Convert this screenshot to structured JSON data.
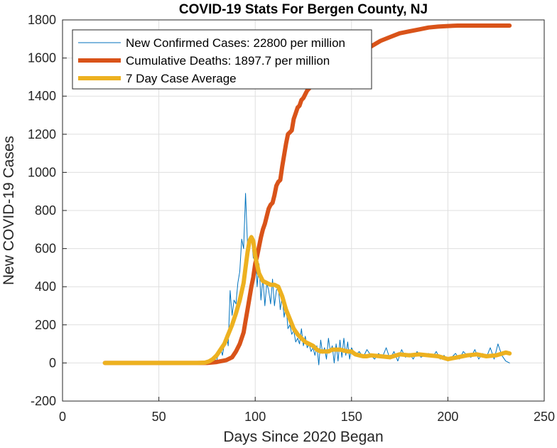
{
  "chart_data": {
    "type": "line",
    "title": "COVID-19 Stats For Bergen County, NJ",
    "xlabel": "Days Since 2020 Began",
    "ylabel": "New COVID-19 Cases",
    "xlim": [
      0,
      250
    ],
    "ylim": [
      -200,
      1800
    ],
    "xticks": [
      0,
      50,
      100,
      150,
      200,
      250
    ],
    "yticks": [
      -200,
      0,
      200,
      400,
      600,
      800,
      1000,
      1200,
      1400,
      1600,
      1800
    ],
    "grid": true,
    "legend_position": "top-left",
    "series": [
      {
        "name": "New Confirmed Cases: 22800 per million",
        "color": "#0072BD",
        "x": [
          22,
          30,
          40,
          50,
          60,
          70,
          74,
          76,
          78,
          79,
          80,
          81,
          82,
          83,
          84,
          85,
          86,
          87,
          88,
          89,
          90,
          91,
          92,
          93,
          94,
          95,
          96,
          97,
          98,
          99,
          100,
          101,
          102,
          103,
          104,
          105,
          106,
          107,
          108,
          109,
          110,
          111,
          112,
          113,
          114,
          115,
          116,
          117,
          118,
          119,
          120,
          121,
          122,
          123,
          124,
          125,
          126,
          127,
          128,
          129,
          130,
          131,
          132,
          133,
          134,
          135,
          136,
          137,
          138,
          139,
          140,
          141,
          142,
          143,
          144,
          145,
          146,
          147,
          148,
          149,
          150,
          152,
          154,
          156,
          158,
          160,
          162,
          164,
          166,
          168,
          170,
          172,
          174,
          176,
          178,
          180,
          182,
          184,
          186,
          188,
          190,
          192,
          194,
          196,
          198,
          200,
          202,
          204,
          206,
          208,
          210,
          212,
          214,
          216,
          218,
          220,
          222,
          224,
          226,
          228,
          230,
          232
        ],
        "y": [
          0,
          0,
          0,
          0,
          0,
          0,
          5,
          15,
          30,
          20,
          10,
          60,
          80,
          40,
          100,
          150,
          90,
          380,
          250,
          330,
          310,
          420,
          480,
          650,
          600,
          890,
          620,
          600,
          670,
          550,
          610,
          400,
          520,
          330,
          450,
          300,
          420,
          380,
          310,
          440,
          300,
          380,
          400,
          280,
          350,
          240,
          300,
          180,
          200,
          150,
          170,
          110,
          130,
          100,
          180,
          90,
          140,
          80,
          100,
          60,
          80,
          40,
          90,
          -10,
          120,
          50,
          80,
          20,
          130,
          60,
          90,
          0,
          100,
          10,
          120,
          30,
          130,
          40,
          110,
          20,
          80,
          40,
          60,
          30,
          70,
          40,
          20,
          50,
          30,
          80,
          20,
          60,
          10,
          70,
          30,
          50,
          20,
          60,
          30,
          40,
          50,
          30,
          60,
          20,
          40,
          10,
          30,
          50,
          20,
          60,
          40,
          30,
          70,
          20,
          50,
          30,
          80,
          20,
          100,
          40,
          10,
          0
        ]
      },
      {
        "name": "Cumulative Deaths: 1897.7 per million",
        "color": "#D95319",
        "x": [
          22,
          40,
          60,
          70,
          75,
          80,
          85,
          88,
          90,
          92,
          94,
          95,
          96,
          97,
          98,
          99,
          100,
          101,
          102,
          103,
          104,
          105,
          106,
          107,
          108,
          109,
          110,
          111,
          112,
          113,
          114,
          115,
          116,
          117,
          118,
          119,
          120,
          121,
          122,
          123,
          124,
          125,
          126,
          127,
          128,
          129,
          130,
          132,
          134,
          136,
          138,
          140,
          142,
          144,
          146,
          148,
          150,
          152,
          154,
          156,
          158,
          160,
          165,
          170,
          175,
          180,
          185,
          190,
          195,
          200,
          205,
          210,
          215,
          220,
          225,
          230,
          232
        ],
        "y": [
          0,
          0,
          0,
          0,
          0,
          5,
          15,
          30,
          60,
          100,
          160,
          220,
          280,
          340,
          400,
          450,
          520,
          560,
          610,
          660,
          700,
          730,
          770,
          810,
          830,
          840,
          880,
          930,
          950,
          960,
          1030,
          1090,
          1150,
          1200,
          1210,
          1220,
          1280,
          1310,
          1340,
          1350,
          1380,
          1390,
          1410,
          1430,
          1440,
          1460,
          1470,
          1490,
          1510,
          1520,
          1540,
          1560,
          1570,
          1580,
          1590,
          1600,
          1610,
          1620,
          1630,
          1640,
          1650,
          1660,
          1690,
          1710,
          1730,
          1740,
          1750,
          1760,
          1765,
          1768,
          1770,
          1770,
          1770,
          1770,
          1770,
          1770,
          1770
        ]
      },
      {
        "name": "7 Day Case Average",
        "color": "#EDB120",
        "x": [
          22,
          30,
          40,
          50,
          60,
          70,
          74,
          76,
          78,
          80,
          82,
          84,
          86,
          88,
          90,
          92,
          94,
          95,
          96,
          97,
          98,
          99,
          100,
          102,
          104,
          106,
          108,
          110,
          112,
          114,
          116,
          118,
          120,
          122,
          124,
          126,
          128,
          130,
          132,
          134,
          136,
          138,
          140,
          142,
          144,
          146,
          148,
          150,
          152,
          154,
          156,
          158,
          160,
          165,
          170,
          175,
          180,
          185,
          190,
          195,
          200,
          205,
          210,
          215,
          220,
          225,
          230,
          232
        ],
        "y": [
          0,
          0,
          0,
          0,
          0,
          0,
          2,
          8,
          20,
          40,
          70,
          100,
          150,
          200,
          260,
          330,
          420,
          500,
          580,
          640,
          660,
          640,
          560,
          470,
          430,
          420,
          410,
          410,
          400,
          350,
          280,
          230,
          180,
          150,
          130,
          110,
          100,
          90,
          70,
          60,
          60,
          60,
          70,
          70,
          70,
          65,
          60,
          60,
          45,
          40,
          35,
          35,
          40,
          35,
          30,
          45,
          40,
          45,
          40,
          35,
          20,
          30,
          40,
          45,
          35,
          40,
          55,
          50
        ]
      }
    ]
  }
}
